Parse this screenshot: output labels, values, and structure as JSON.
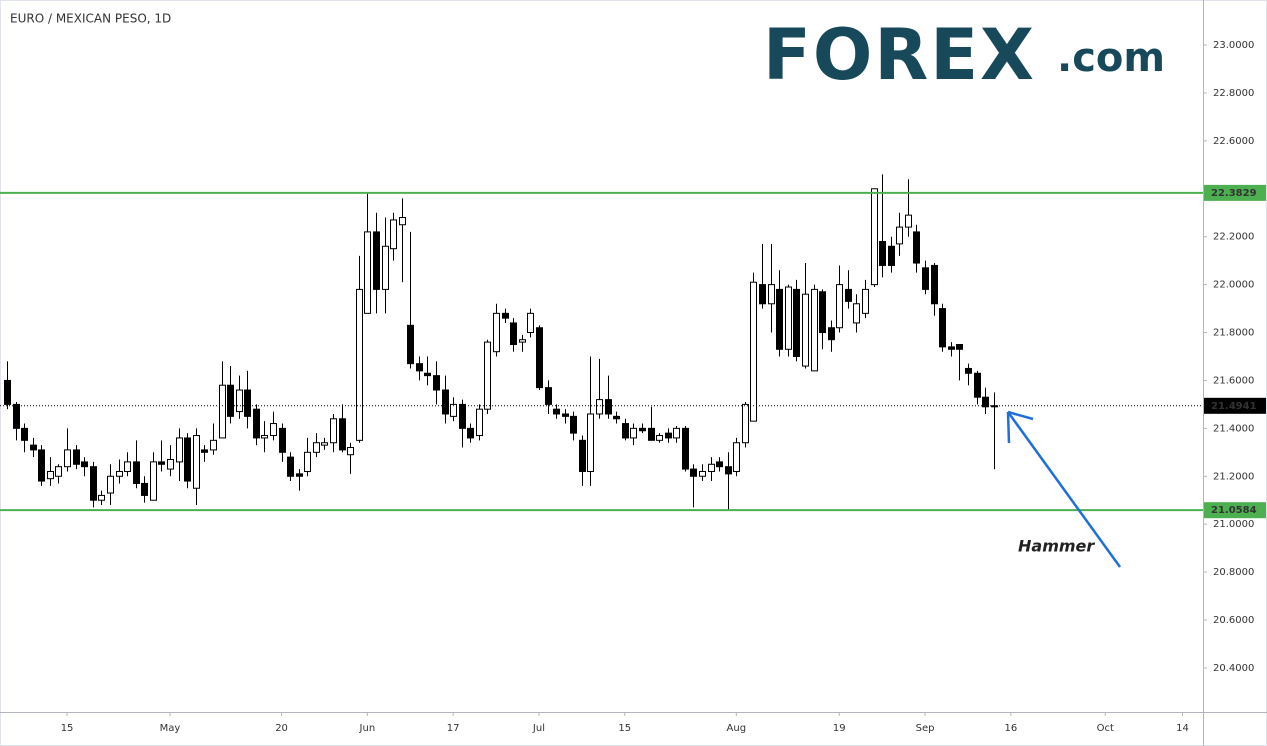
{
  "chart_data": {
    "type": "candlestick",
    "title": "EURO / MEXICAN PESO, 1D",
    "logo": {
      "brand": "FOREX",
      "suffix": ".com"
    },
    "annotation": "Hammer",
    "categories": [
      "Apr 4",
      "Apr 5",
      "Apr 8",
      "Apr 9",
      "Apr 10",
      "Apr 11",
      "Apr 12",
      "Apr 15",
      "Apr 16",
      "Apr 17",
      "Apr 18",
      "Apr 19",
      "Apr 22",
      "Apr 23",
      "Apr 24",
      "Apr 25",
      "Apr 26",
      "Apr 29",
      "Apr 30",
      "May 1",
      "May 2",
      "May 3",
      "May 6",
      "May 7",
      "May 8",
      "May 9",
      "May 10",
      "May 13",
      "May 14",
      "May 15",
      "May 16",
      "May 17",
      "May 20",
      "May 21",
      "May 22",
      "May 23",
      "May 24",
      "May 27",
      "May 28",
      "May 29",
      "May 30",
      "May 31",
      "Jun 3",
      "Jun 4",
      "Jun 5",
      "Jun 6",
      "Jun 7",
      "Jun 10",
      "Jun 11",
      "Jun 12",
      "Jun 13",
      "Jun 14",
      "Jun 17",
      "Jun 18",
      "Jun 19",
      "Jun 20",
      "Jun 21",
      "Jun 24",
      "Jun 25",
      "Jun 26",
      "Jun 27",
      "Jun 28",
      "Jul 1",
      "Jul 2",
      "Jul 3",
      "Jul 4",
      "Jul 5",
      "Jul 8",
      "Jul 9",
      "Jul 10",
      "Jul 11",
      "Jul 12",
      "Jul 15",
      "Jul 16",
      "Jul 17",
      "Jul 18",
      "Jul 19",
      "Jul 22",
      "Jul 23",
      "Jul 24",
      "Jul 25",
      "Jul 26",
      "Jul 29",
      "Jul 30",
      "Jul 31",
      "Aug 1",
      "Aug 2",
      "Aug 5",
      "Aug 6",
      "Aug 7",
      "Aug 8",
      "Aug 9",
      "Aug 12",
      "Aug 13",
      "Aug 14",
      "Aug 15",
      "Aug 16",
      "Aug 19",
      "Aug 20",
      "Aug 21",
      "Aug 22",
      "Aug 23",
      "Aug 26",
      "Aug 27",
      "Aug 28",
      "Aug 29",
      "Aug 30",
      "Sep 2",
      "Sep 3",
      "Sep 4",
      "Sep 5",
      "Sep 6",
      "Sep 9",
      "Sep 10",
      "Sep 11",
      "Sep 12",
      "Sep 13",
      "Sep 16",
      "Sep 17",
      "Sep 18",
      "Sep 19",
      "Sep 20",
      "Sep 23",
      "Sep 24",
      "Sep 25",
      "Sep 26",
      "Sep 27",
      "Sep 30",
      "Oct 1",
      "Oct 2",
      "Oct 3",
      "Oct 4",
      "Oct 7",
      "Oct 8",
      "Oct 9",
      "Oct 10",
      "Oct 11",
      "Oct 14",
      "Oct 15",
      "Oct 16",
      "Oct 17",
      "Oct 18"
    ],
    "open": [
      21.6,
      21.5,
      21.4,
      21.33,
      21.31,
      21.19,
      21.2,
      21.24,
      21.31,
      21.26,
      21.24,
      21.1,
      21.13,
      21.2,
      21.22,
      21.26,
      21.17,
      21.1,
      21.26,
      21.23,
      21.26,
      21.36,
      21.15,
      21.31,
      21.31,
      21.36,
      21.58,
      21.47,
      21.56,
      21.48,
      21.36,
      21.37,
      21.4,
      21.28,
      21.21,
      21.22,
      21.3,
      21.33,
      21.34,
      21.44,
      21.29,
      21.35,
      21.88,
      22.22,
      21.98,
      22.15,
      22.25,
      21.83,
      21.67,
      21.63,
      21.62,
      21.56,
      21.45,
      21.5,
      21.4,
      21.37,
      21.48,
      21.72,
      21.88,
      21.84,
      21.76,
      21.8,
      21.82,
      21.57,
      21.48,
      21.46,
      21.45,
      21.35,
      21.22,
      21.46,
      21.52,
      21.45,
      21.42,
      21.36,
      21.4,
      21.4,
      21.35,
      21.38,
      21.36,
      21.4,
      21.23,
      21.2,
      21.22,
      21.26,
      21.24,
      21.22,
      21.34,
      21.43,
      22.0,
      21.92,
      21.98,
      21.73,
      21.98,
      21.66,
      21.64,
      21.97,
      21.82,
      21.82,
      21.98,
      21.84,
      21.88,
      22.0,
      22.18,
      22.16,
      22.17,
      22.24,
      22.22,
      22.07,
      22.08,
      21.9,
      21.74,
      21.75,
      21.65,
      21.63,
      21.53,
      21.49,
      null,
      null,
      null,
      null,
      null,
      null,
      null,
      null,
      null,
      null,
      null,
      null,
      null,
      null,
      null,
      null,
      null,
      null,
      null,
      null,
      null,
      null,
      null,
      null,
      null,
      null
    ],
    "high": [
      21.68,
      21.51,
      21.42,
      21.36,
      21.33,
      21.28,
      21.25,
      21.4,
      21.33,
      21.28,
      21.26,
      21.14,
      21.25,
      21.27,
      21.3,
      21.35,
      21.2,
      21.3,
      21.35,
      21.33,
      21.4,
      21.38,
      21.4,
      21.33,
      21.42,
      21.68,
      21.66,
      21.62,
      21.64,
      21.5,
      21.43,
      21.47,
      21.42,
      21.3,
      21.23,
      21.36,
      21.38,
      21.36,
      21.46,
      21.5,
      21.34,
      22.12,
      22.38,
      22.3,
      22.28,
      22.3,
      22.36,
      22.22,
      21.7,
      21.7,
      21.68,
      21.62,
      21.53,
      21.52,
      21.42,
      21.5,
      21.77,
      21.92,
      21.9,
      21.86,
      21.79,
      21.9,
      21.83,
      21.6,
      21.5,
      21.48,
      21.47,
      21.37,
      21.7,
      21.69,
      21.62,
      21.47,
      21.44,
      21.42,
      21.42,
      21.49,
      21.38,
      21.4,
      21.41,
      21.41,
      21.25,
      21.25,
      21.28,
      21.28,
      21.3,
      21.36,
      21.51,
      22.05,
      22.17,
      22.17,
      22.06,
      22.0,
      22.02,
      22.09,
      22.0,
      21.98,
      21.85,
      22.08,
      22.06,
      21.96,
      22.02,
      22.4,
      22.46,
      22.2,
      22.3,
      22.44,
      22.25,
      22.1,
      22.09,
      21.92,
      21.76,
      21.75,
      21.67,
      21.64,
      21.57,
      21.55,
      null,
      null,
      null,
      null,
      null,
      null,
      null,
      null,
      null,
      null,
      null,
      null,
      null,
      null,
      null,
      null,
      null,
      null,
      null,
      null,
      null,
      null,
      null,
      null,
      null,
      null
    ],
    "low": [
      21.48,
      21.35,
      21.3,
      21.28,
      21.16,
      21.16,
      21.17,
      21.22,
      21.23,
      21.2,
      21.07,
      21.08,
      21.08,
      21.17,
      21.2,
      21.15,
      21.09,
      21.1,
      21.22,
      21.2,
      21.18,
      21.15,
      21.08,
      21.26,
      21.29,
      21.36,
      21.42,
      21.44,
      21.4,
      21.33,
      21.3,
      21.35,
      21.26,
      21.18,
      21.14,
      21.2,
      21.28,
      21.31,
      21.3,
      21.3,
      21.21,
      21.34,
      21.88,
      21.88,
      21.88,
      22.1,
      22.01,
      21.65,
      21.6,
      21.58,
      21.5,
      21.42,
      21.43,
      21.32,
      21.34,
      21.35,
      21.46,
      21.7,
      21.84,
      21.72,
      21.72,
      21.78,
      21.56,
      21.46,
      21.44,
      21.42,
      21.35,
      21.16,
      21.16,
      21.44,
      21.44,
      21.42,
      21.35,
      21.33,
      21.38,
      21.35,
      21.34,
      21.34,
      21.34,
      21.22,
      21.07,
      21.18,
      21.18,
      21.22,
      21.06,
      21.2,
      21.32,
      21.43,
      21.9,
      21.8,
      21.7,
      21.7,
      21.68,
      21.65,
      21.64,
      21.73,
      21.72,
      21.8,
      21.9,
      21.8,
      21.86,
      21.99,
      22.03,
      22.05,
      22.12,
      22.2,
      22.05,
      21.96,
      21.87,
      21.72,
      21.7,
      21.6,
      21.58,
      21.5,
      21.46,
      21.23,
      null,
      null,
      null,
      null,
      null,
      null,
      null,
      null,
      null,
      null,
      null,
      null,
      null,
      null,
      null,
      null,
      null,
      null,
      null,
      null,
      null,
      null,
      null,
      null,
      null,
      null
    ],
    "close": [
      21.5,
      21.4,
      21.35,
      21.31,
      21.18,
      21.22,
      21.24,
      21.31,
      21.25,
      21.24,
      21.1,
      21.12,
      21.2,
      21.22,
      21.26,
      21.17,
      21.12,
      21.26,
      21.25,
      21.27,
      21.36,
      21.18,
      21.37,
      21.3,
      21.35,
      21.58,
      21.45,
      21.56,
      21.45,
      21.36,
      21.37,
      21.42,
      21.3,
      21.2,
      21.2,
      21.3,
      21.34,
      21.34,
      21.44,
      21.31,
      21.32,
      21.98,
      22.22,
      21.98,
      22.16,
      22.27,
      22.28,
      21.67,
      21.64,
      21.62,
      21.56,
      21.46,
      21.5,
      21.4,
      21.36,
      21.48,
      21.76,
      21.88,
      21.86,
      21.75,
      21.77,
      21.88,
      21.57,
      21.5,
      21.46,
      21.45,
      21.38,
      21.22,
      21.46,
      21.52,
      21.46,
      21.44,
      21.36,
      21.4,
      21.39,
      21.35,
      21.37,
      21.36,
      21.4,
      21.23,
      21.2,
      21.22,
      21.25,
      21.24,
      21.21,
      21.34,
      21.5,
      22.01,
      21.92,
      22.0,
      21.73,
      21.99,
      21.7,
      21.96,
      21.98,
      21.8,
      21.77,
      22.0,
      21.93,
      21.92,
      21.98,
      22.4,
      22.08,
      22.08,
      22.24,
      22.29,
      22.09,
      21.98,
      21.92,
      21.74,
      21.73,
      21.73,
      21.63,
      21.53,
      21.49,
      21.4941,
      null,
      null,
      null,
      null,
      null,
      null,
      null,
      null,
      null,
      null,
      null,
      null,
      null,
      null,
      null,
      null,
      null,
      null,
      null,
      null,
      null,
      null,
      null,
      null,
      null,
      null
    ],
    "xticks": [
      {
        "value": "Apr 15",
        "label": "15"
      },
      {
        "value": "May 1",
        "label": "May"
      },
      {
        "value": "May 20",
        "label": "20"
      },
      {
        "value": "Jun 3",
        "label": "Jun"
      },
      {
        "value": "Jun 17",
        "label": "17"
      },
      {
        "value": "Jul 1",
        "label": "Jul"
      },
      {
        "value": "Jul 15",
        "label": "15"
      },
      {
        "value": "Aug 1",
        "label": "Aug"
      },
      {
        "value": "Aug 19",
        "label": "19"
      },
      {
        "value": "Sep 2",
        "label": "Sep"
      },
      {
        "value": "Sep 16",
        "label": "16"
      },
      {
        "value": "Oct 1",
        "label": "Oct"
      },
      {
        "value": "Oct 14",
        "label": "14"
      }
    ],
    "ylim": [
      20.216,
      23.188
    ],
    "yticks": [
      {
        "value": 20.4,
        "label": "20.4000"
      },
      {
        "value": 20.6,
        "label": "20.6000"
      },
      {
        "value": 20.8,
        "label": "20.8000"
      },
      {
        "value": 21.0,
        "label": "21.0000"
      },
      {
        "value": 21.2,
        "label": "21.2000"
      },
      {
        "value": 21.4,
        "label": "21.4000"
      },
      {
        "value": 21.6,
        "label": "21.6000"
      },
      {
        "value": 21.8,
        "label": "21.8000"
      },
      {
        "value": 22.0,
        "label": "22.0000"
      },
      {
        "value": 22.2,
        "label": "22.2000"
      },
      {
        "value": 22.4,
        "label": "22.4000"
      },
      {
        "value": 22.6,
        "label": "22.6000"
      },
      {
        "value": 22.8,
        "label": "22.8000"
      },
      {
        "value": 23.0,
        "label": "23.0000"
      }
    ],
    "levels": [
      22.3829,
      21.0584
    ],
    "level_color": "#4caf50",
    "last_price": 21.4941,
    "up_color": "#ffffff",
    "down_color": "#000000",
    "annotation_color": "#1e6fd9"
  }
}
